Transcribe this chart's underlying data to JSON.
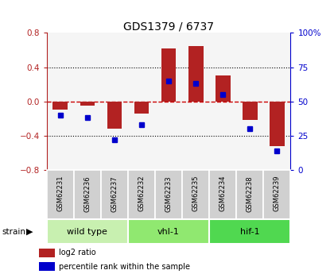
{
  "title": "GDS1379 / 6737",
  "samples": [
    "GSM62231",
    "GSM62236",
    "GSM62237",
    "GSM62232",
    "GSM62233",
    "GSM62235",
    "GSM62234",
    "GSM62238",
    "GSM62239"
  ],
  "log2_ratio": [
    -0.1,
    -0.05,
    -0.32,
    -0.14,
    0.62,
    0.65,
    0.3,
    -0.22,
    -0.52
  ],
  "percentile_rank": [
    40,
    38,
    22,
    33,
    65,
    63,
    55,
    30,
    14
  ],
  "groups": [
    {
      "label": "wild type",
      "indices": [
        0,
        1,
        2
      ],
      "color": "#c8f0b0"
    },
    {
      "label": "vhl-1",
      "indices": [
        3,
        4,
        5
      ],
      "color": "#90e870"
    },
    {
      "label": "hif-1",
      "indices": [
        6,
        7,
        8
      ],
      "color": "#50d850"
    }
  ],
  "ylim": [
    -0.8,
    0.8
  ],
  "yticks_left": [
    -0.8,
    -0.4,
    0.0,
    0.4,
    0.8
  ],
  "yticks_right": [
    0,
    25,
    50,
    75,
    100
  ],
  "bar_color_red": "#b22222",
  "dot_color_blue": "#0000cc",
  "zero_line_color": "#cc0000",
  "plot_bg_color": "#f5f5f5",
  "sample_box_color": "#d0d0d0",
  "legend_red_label": "log2 ratio",
  "legend_blue_label": "percentile rank within the sample",
  "fig_width": 4.2,
  "fig_height": 3.45,
  "fig_dpi": 100
}
